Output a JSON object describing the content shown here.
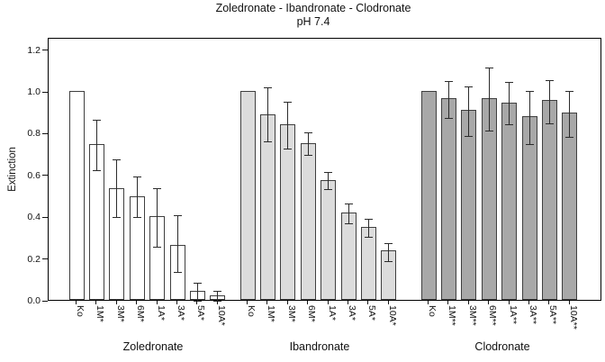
{
  "chart_data": {
    "type": "bar",
    "title": "Zoledronate - Ibandronate - Clodronate",
    "subtitle": "pH 7.4",
    "ylabel": "Extinction",
    "xlabel": "",
    "ylim": [
      0,
      1.26
    ],
    "yticks": [
      "0.0",
      "0.2",
      "0.4",
      "0.6",
      "0.8",
      "1.0",
      "1.2"
    ],
    "grid": false,
    "legend": "none",
    "frame_color": "#000000",
    "bar_outline_color": "#3f3f3f",
    "error_bar_color": "#2b2b2b",
    "groups": [
      {
        "name": "Zoledronate",
        "fill": "#ffffff",
        "categories": [
          "Ko",
          "1M*",
          "3M*",
          "6M*",
          "1A*",
          "3A*",
          "5A*",
          "10A*"
        ],
        "values": [
          1.0,
          0.745,
          0.535,
          0.495,
          0.4,
          0.265,
          0.045,
          0.02
        ],
        "errors": [
          null,
          [
            0.625,
            0.87
          ],
          [
            0.4,
            0.68
          ],
          [
            0.4,
            0.6
          ],
          [
            0.26,
            0.545
          ],
          [
            0.14,
            0.415
          ],
          [
            0.0,
            0.09
          ],
          [
            0.0,
            0.05
          ]
        ]
      },
      {
        "name": "Ibandronate",
        "fill": "#dcdcdc",
        "categories": [
          "Ko",
          "1M*",
          "3M*",
          "6M*",
          "1A*",
          "3A*",
          "5A*",
          "10A*"
        ],
        "values": [
          1.0,
          0.89,
          0.84,
          0.75,
          0.575,
          0.42,
          0.35,
          0.235
        ],
        "errors": [
          null,
          [
            0.765,
            1.025
          ],
          [
            0.73,
            0.955
          ],
          [
            0.7,
            0.81
          ],
          [
            0.535,
            0.62
          ],
          [
            0.37,
            0.47
          ],
          [
            0.305,
            0.395
          ],
          [
            0.19,
            0.28
          ]
        ]
      },
      {
        "name": "Clodronate",
        "fill": "#a8a8a8",
        "categories": [
          "Ko",
          "1M**",
          "3M**",
          "6M**",
          "1A**",
          "3A**",
          "5A**",
          "10A**"
        ],
        "values": [
          1.0,
          0.965,
          0.91,
          0.965,
          0.945,
          0.88,
          0.955,
          0.895
        ],
        "errors": [
          null,
          [
            0.875,
            1.055
          ],
          [
            0.79,
            1.03
          ],
          [
            0.815,
            1.12
          ],
          [
            0.845,
            1.05
          ],
          [
            0.75,
            1.01
          ],
          [
            0.85,
            1.06
          ],
          [
            0.785,
            1.01
          ]
        ]
      }
    ]
  }
}
